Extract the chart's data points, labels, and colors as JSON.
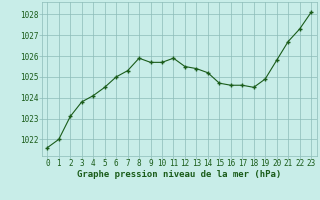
{
  "x": [
    0,
    1,
    2,
    3,
    4,
    5,
    6,
    7,
    8,
    9,
    10,
    11,
    12,
    13,
    14,
    15,
    16,
    17,
    18,
    19,
    20,
    21,
    22,
    23
  ],
  "y": [
    1021.6,
    1022.0,
    1023.1,
    1023.8,
    1024.1,
    1024.5,
    1025.0,
    1025.3,
    1025.9,
    1025.7,
    1025.7,
    1025.9,
    1025.5,
    1025.4,
    1025.2,
    1024.7,
    1024.6,
    1024.6,
    1024.5,
    1024.9,
    1025.8,
    1026.7,
    1027.3,
    1028.1
  ],
  "line_color": "#1a5c1a",
  "marker": "+",
  "marker_size": 3.5,
  "marker_lw": 1.0,
  "line_width": 0.8,
  "bg_color": "#c8ede8",
  "grid_color": "#8cbcb8",
  "axes_bg": "#c8ede8",
  "xlabel": "Graphe pression niveau de la mer (hPa)",
  "xlabel_color": "#1a5c1a",
  "xlabel_fontsize": 6.5,
  "tick_label_color": "#1a5c1a",
  "tick_fontsize": 5.5,
  "ytick_labels": [
    1022,
    1023,
    1024,
    1025,
    1026,
    1027,
    1028
  ],
  "ylim": [
    1021.2,
    1028.6
  ],
  "xlim": [
    -0.5,
    23.5
  ],
  "xtick_labels": [
    "0",
    "1",
    "2",
    "3",
    "4",
    "5",
    "6",
    "7",
    "8",
    "9",
    "10",
    "11",
    "12",
    "13",
    "14",
    "15",
    "16",
    "17",
    "18",
    "19",
    "20",
    "21",
    "22",
    "23"
  ]
}
